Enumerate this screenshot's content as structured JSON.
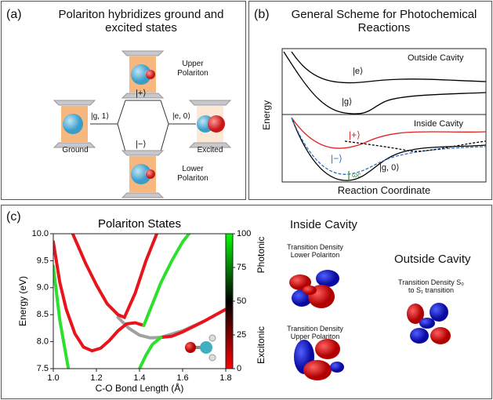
{
  "panel_a": {
    "label": "(a)",
    "title": "Polariton hybridizes ground and excited states",
    "upper_label": "Upper Polariton",
    "lower_label": "Lower Polariton",
    "ground_label": "Ground",
    "excited_label": "Excited",
    "plus_state": "|+⟩",
    "minus_state": "|−⟩",
    "g1_state": "|g, 1⟩",
    "e0_state": "|e, 0⟩"
  },
  "panel_b": {
    "label": "(b)",
    "title": "General Scheme for Photochemical Reactions",
    "outside_label": "Outside Cavity",
    "e_state": "|e⟩",
    "g_state": "|g⟩",
    "y_label": "Energy",
    "inside_label": "Inside Cavity",
    "plus_state": "|+⟩",
    "minus_state": "|−⟩",
    "g0_state": "|g, 0⟩",
    "omega": "ωc",
    "x_label": "Reaction Coordinate"
  },
  "panel_c": {
    "label": "(c)",
    "chart_data": {
      "type": "line",
      "title": "Polariton States",
      "y_label": "Energy (eV)",
      "x_label": "C-O Bond Length (Å)",
      "xlim": [
        1.0,
        1.8
      ],
      "ylim": [
        7.5,
        10.0
      ],
      "xticks": [
        {
          "value": 1.0,
          "label": "1.0"
        },
        1.2,
        1.4,
        1.6,
        1.8
      ],
      "yticks": [
        7.5,
        {
          "value": 8.0,
          "label": "8.0"
        },
        8.5,
        {
          "value": 9.0,
          "label": "9.0"
        },
        9.5,
        {
          "value": 10.0,
          "label": "10.0"
        }
      ],
      "series": [
        {
          "color": "#a0a0a0",
          "x": [
            1.3,
            1.35,
            1.4,
            1.45,
            1.5,
            1.6,
            1.7,
            1.8
          ],
          "values": [
            8.45,
            8.25,
            8.12,
            8.07,
            8.08,
            8.2,
            8.38,
            8.6
          ]
        },
        {
          "color": "#e8141c",
          "x": [
            1.0,
            1.03,
            1.06,
            1.1,
            1.14,
            1.18,
            1.22,
            1.26,
            1.3,
            1.34,
            1.38,
            1.42
          ],
          "values": [
            9.85,
            9.1,
            8.6,
            8.15,
            7.9,
            7.83,
            7.88,
            8.02,
            8.2,
            8.33,
            8.35,
            8.3
          ]
        },
        {
          "color": "#2ee02e",
          "x": [
            1.42,
            1.46,
            1.5,
            1.55,
            1.6,
            1.63
          ],
          "values": [
            8.3,
            8.7,
            9.1,
            9.5,
            9.85,
            10.0
          ]
        },
        {
          "color": "#e8141c",
          "x": [
            1.09,
            1.15,
            1.2,
            1.25,
            1.3,
            1.33,
            1.38,
            1.43,
            1.48
          ],
          "values": [
            10.0,
            9.45,
            9.05,
            8.7,
            8.5,
            8.45,
            8.9,
            9.5,
            10.0
          ]
        },
        {
          "color": "#e8141c",
          "x": [
            1.5,
            1.55,
            1.6,
            1.7,
            1.8
          ],
          "values": [
            8.08,
            8.1,
            8.18,
            8.38,
            8.6
          ]
        },
        {
          "color": "#2ee02e",
          "x": [
            1.4,
            1.43,
            1.46,
            1.5
          ],
          "values": [
            7.5,
            7.75,
            7.95,
            8.08
          ]
        },
        {
          "color": "#2ee02e",
          "x": [
            1.0,
            1.03,
            1.07
          ],
          "values": [
            9.4,
            8.4,
            7.5
          ]
        }
      ],
      "colorbar": {
        "ylim": [
          0,
          100
        ],
        "yticks": [
          0,
          25,
          50,
          75,
          100
        ],
        "top_label": "Photonic",
        "bottom_label": "Excitonic"
      }
    },
    "inside_title": "Inside Cavity",
    "lower_density": "Transition Density Lower Polariton",
    "upper_density": "Transition Density Upper Polariton",
    "outside_title": "Outside Cavity",
    "outside_density": "Transition Density S₀ to S₁ transition"
  }
}
